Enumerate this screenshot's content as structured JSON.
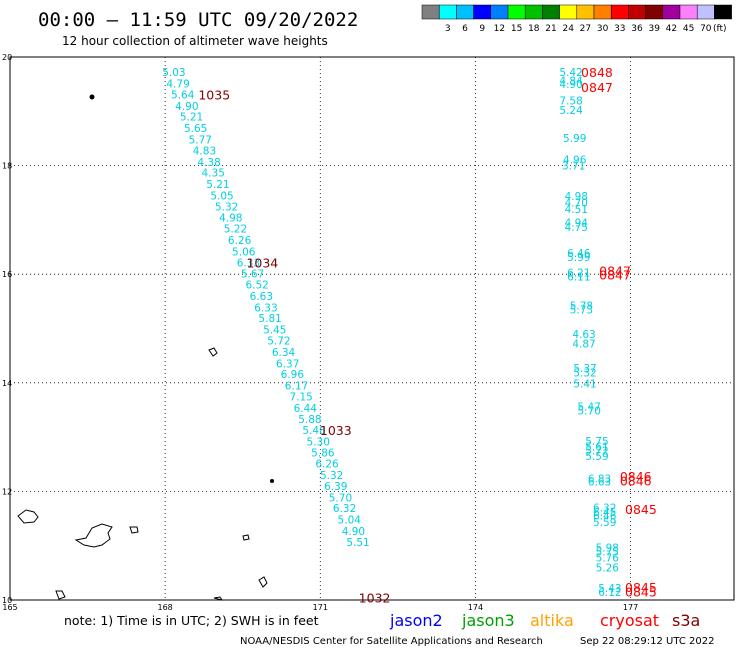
{
  "header": {
    "title": "00:00 — 11:59 UTC 09/20/2022",
    "subtitle": "12 hour collection of altimeter wave heights"
  },
  "colorbar": {
    "unit": "(ft)",
    "colors": [
      "#808080",
      "#00ffff",
      "#00bfff",
      "#0000ff",
      "#0080ff",
      "#00ff00",
      "#00c000",
      "#008000",
      "#ffff00",
      "#ffc000",
      "#ff8000",
      "#ff0000",
      "#c00000",
      "#800000",
      "#a000a0",
      "#ff80ff",
      "#c0c0ff",
      "#000000"
    ],
    "labels": [
      "",
      "3",
      "6",
      "9",
      "12",
      "15",
      "18",
      "21",
      "24",
      "27",
      "30",
      "33",
      "36",
      "39",
      "42",
      "45",
      "70",
      ""
    ]
  },
  "footer": {
    "note": "note:  1) Time is in UTC;  2) SWH is in feet",
    "satellites": [
      {
        "name": "jason2",
        "color": "#0000ff"
      },
      {
        "name": "jason3",
        "color": "#00a000"
      },
      {
        "name": "altika",
        "color": "#ffa000"
      },
      {
        "name": "cryosat",
        "color": "#ff0000"
      },
      {
        "name": "s3a",
        "color": "#800000"
      }
    ],
    "credit": "NOAA/NESDIS Center for Satellite Applications and Research",
    "timestamp": "Sep 22 08:29:12 UTC 2022"
  },
  "chart_data": {
    "type": "scatter",
    "x_range": [
      165,
      179
    ],
    "y_range": [
      10,
      20
    ],
    "x_ticks": [
      165,
      168,
      171,
      174,
      177
    ],
    "y_ticks": [
      10,
      12,
      14,
      16,
      18,
      20
    ],
    "grid": true,
    "series": [
      {
        "name": "s3a",
        "color": "#00d0e0",
        "points": [
          {
            "x": 168.17,
            "y": 19.72,
            "v": "5.03"
          },
          {
            "x": 168.25,
            "y": 19.51,
            "v": "4.79"
          },
          {
            "x": 168.34,
            "y": 19.31,
            "v": "5.64"
          },
          {
            "x": 168.42,
            "y": 19.1,
            "v": "4.90"
          },
          {
            "x": 168.51,
            "y": 18.9,
            "v": "5.21"
          },
          {
            "x": 168.59,
            "y": 18.69,
            "v": "5.65"
          },
          {
            "x": 168.68,
            "y": 18.48,
            "v": "5.77"
          },
          {
            "x": 168.76,
            "y": 18.28,
            "v": "4.83"
          },
          {
            "x": 168.85,
            "y": 18.07,
            "v": "4.38"
          },
          {
            "x": 168.93,
            "y": 17.87,
            "v": "4.35"
          },
          {
            "x": 169.02,
            "y": 17.66,
            "v": "5.21"
          },
          {
            "x": 169.1,
            "y": 17.45,
            "v": "5.05"
          },
          {
            "x": 169.19,
            "y": 17.25,
            "v": "5.32"
          },
          {
            "x": 169.27,
            "y": 17.04,
            "v": "4.98"
          },
          {
            "x": 169.36,
            "y": 16.84,
            "v": "5.22"
          },
          {
            "x": 169.44,
            "y": 16.63,
            "v": "6.26"
          },
          {
            "x": 169.52,
            "y": 16.42,
            "v": "5.06"
          },
          {
            "x": 169.61,
            "y": 16.22,
            "v": "6.33"
          },
          {
            "x": 169.69,
            "y": 16.01,
            "v": "5.67"
          },
          {
            "x": 169.78,
            "y": 15.81,
            "v": "6.52"
          },
          {
            "x": 169.86,
            "y": 15.6,
            "v": "6.63"
          },
          {
            "x": 169.95,
            "y": 15.39,
            "v": "6.33"
          },
          {
            "x": 170.03,
            "y": 15.19,
            "v": "5.81"
          },
          {
            "x": 170.12,
            "y": 14.98,
            "v": "5.45"
          },
          {
            "x": 170.2,
            "y": 14.78,
            "v": "5.72"
          },
          {
            "x": 170.29,
            "y": 14.57,
            "v": "6.34"
          },
          {
            "x": 170.37,
            "y": 14.36,
            "v": "6.37"
          },
          {
            "x": 170.46,
            "y": 14.16,
            "v": "6.96"
          },
          {
            "x": 170.54,
            "y": 13.95,
            "v": "6.17"
          },
          {
            "x": 170.63,
            "y": 13.75,
            "v": "7.15"
          },
          {
            "x": 170.71,
            "y": 13.54,
            "v": "6.44"
          },
          {
            "x": 170.8,
            "y": 13.33,
            "v": "5.88"
          },
          {
            "x": 170.88,
            "y": 13.13,
            "v": "5.48"
          },
          {
            "x": 170.96,
            "y": 12.92,
            "v": "5.30"
          },
          {
            "x": 171.05,
            "y": 12.72,
            "v": "5.86"
          },
          {
            "x": 171.13,
            "y": 12.51,
            "v": "6.26"
          },
          {
            "x": 171.22,
            "y": 12.3,
            "v": "5.32"
          },
          {
            "x": 171.3,
            "y": 12.1,
            "v": "6.39"
          },
          {
            "x": 171.39,
            "y": 11.89,
            "v": "5.70"
          },
          {
            "x": 171.47,
            "y": 11.69,
            "v": "6.32"
          },
          {
            "x": 171.56,
            "y": 11.48,
            "v": "5.04"
          },
          {
            "x": 171.64,
            "y": 11.27,
            "v": "4.90"
          },
          {
            "x": 171.73,
            "y": 11.07,
            "v": "5.51"
          }
        ]
      },
      {
        "name": "cryosat",
        "color": "#00d0e0",
        "points": [
          {
            "x": 175.85,
            "y": 19.72,
            "v": "5.42"
          },
          {
            "x": 175.85,
            "y": 19.57,
            "v": "4.84"
          },
          {
            "x": 175.85,
            "y": 19.5,
            "v": "4.90"
          },
          {
            "x": 175.85,
            "y": 19.2,
            "v": "7.58"
          },
          {
            "x": 175.85,
            "y": 19.02,
            "v": "5.24"
          },
          {
            "x": 175.92,
            "y": 18.51,
            "v": "5.99"
          },
          {
            "x": 175.92,
            "y": 18.11,
            "v": "4.96"
          },
          {
            "x": 175.9,
            "y": 18.0,
            "v": "3.71"
          },
          {
            "x": 175.95,
            "y": 17.44,
            "v": "4.98"
          },
          {
            "x": 175.95,
            "y": 17.32,
            "v": "4.70"
          },
          {
            "x": 175.95,
            "y": 17.2,
            "v": "4.51"
          },
          {
            "x": 175.95,
            "y": 16.95,
            "v": "4.94"
          },
          {
            "x": 175.95,
            "y": 16.87,
            "v": "4.75"
          },
          {
            "x": 176.0,
            "y": 16.39,
            "v": "6.46"
          },
          {
            "x": 176.0,
            "y": 16.32,
            "v": "5.99"
          },
          {
            "x": 176.0,
            "y": 16.03,
            "v": "6.21"
          },
          {
            "x": 176.0,
            "y": 15.96,
            "v": "6.11"
          },
          {
            "x": 176.05,
            "y": 15.42,
            "v": "5.78"
          },
          {
            "x": 176.05,
            "y": 15.35,
            "v": "5.73"
          },
          {
            "x": 176.1,
            "y": 14.9,
            "v": "4.63"
          },
          {
            "x": 176.1,
            "y": 14.72,
            "v": "4.87"
          },
          {
            "x": 176.12,
            "y": 14.27,
            "v": "5.37"
          },
          {
            "x": 176.12,
            "y": 14.19,
            "v": "5.32"
          },
          {
            "x": 176.12,
            "y": 13.99,
            "v": "5.41"
          },
          {
            "x": 176.2,
            "y": 13.56,
            "v": "5.47"
          },
          {
            "x": 176.2,
            "y": 13.49,
            "v": "5.70"
          },
          {
            "x": 176.35,
            "y": 12.93,
            "v": "5.75"
          },
          {
            "x": 176.35,
            "y": 12.83,
            "v": "5.61"
          },
          {
            "x": 176.35,
            "y": 12.75,
            "v": "5.72"
          },
          {
            "x": 176.35,
            "y": 12.65,
            "v": "5.59"
          },
          {
            "x": 176.4,
            "y": 12.24,
            "v": "6.83"
          },
          {
            "x": 176.4,
            "y": 12.18,
            "v": "6.63"
          },
          {
            "x": 176.5,
            "y": 11.7,
            "v": "6.32"
          },
          {
            "x": 176.5,
            "y": 11.62,
            "v": "6.45"
          },
          {
            "x": 176.5,
            "y": 11.56,
            "v": "6.46"
          },
          {
            "x": 176.5,
            "y": 11.44,
            "v": "5.59"
          },
          {
            "x": 176.55,
            "y": 10.97,
            "v": "5.98"
          },
          {
            "x": 176.55,
            "y": 10.89,
            "v": "5.75"
          },
          {
            "x": 176.55,
            "y": 10.78,
            "v": "5.76"
          },
          {
            "x": 176.55,
            "y": 10.6,
            "v": "5.26"
          },
          {
            "x": 176.6,
            "y": 10.22,
            "v": "5.43"
          },
          {
            "x": 176.6,
            "y": 10.15,
            "v": "6.12"
          }
        ]
      }
    ],
    "time_labels": [
      {
        "x": 168.95,
        "y": 19.31,
        "v": "1035",
        "color": "#800000"
      },
      {
        "x": 169.88,
        "y": 16.22,
        "v": "1034",
        "color": "#800000"
      },
      {
        "x": 171.3,
        "y": 13.13,
        "v": "1033",
        "color": "#800000"
      },
      {
        "x": 172.05,
        "y": 10.05,
        "v": "1032",
        "color": "#800000"
      },
      {
        "x": 176.35,
        "y": 19.72,
        "v": "0848",
        "color": "#ff0000"
      },
      {
        "x": 176.35,
        "y": 19.45,
        "v": "0847",
        "color": "#ff0000"
      },
      {
        "x": 176.7,
        "y": 16.07,
        "v": "0847",
        "color": "#ff0000"
      },
      {
        "x": 176.7,
        "y": 15.99,
        "v": "0847",
        "color": "#ff0000"
      },
      {
        "x": 177.1,
        "y": 12.28,
        "v": "0846",
        "color": "#ff0000"
      },
      {
        "x": 177.1,
        "y": 12.2,
        "v": "0846",
        "color": "#ff0000"
      },
      {
        "x": 177.2,
        "y": 11.68,
        "v": "0845",
        "color": "#ff0000"
      },
      {
        "x": 177.2,
        "y": 10.24,
        "v": "0845",
        "color": "#ff0000"
      },
      {
        "x": 177.2,
        "y": 10.16,
        "v": "0845",
        "color": "#ff0000"
      }
    ]
  }
}
